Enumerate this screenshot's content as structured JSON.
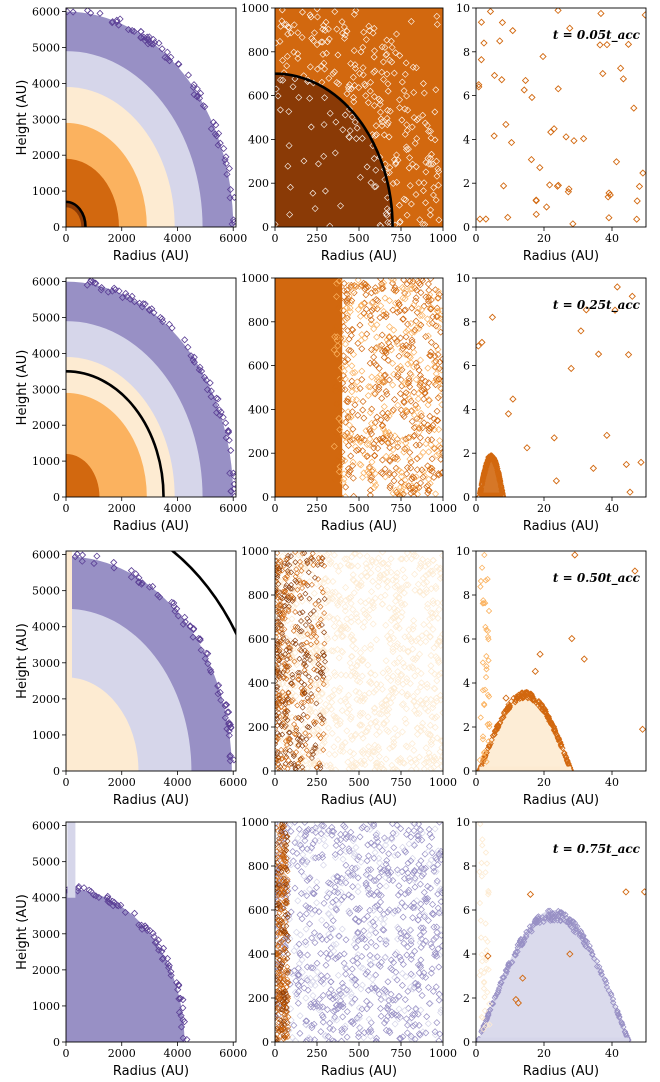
{
  "colors": {
    "purple_dark": "#5b3f95",
    "purple": "#9890c5",
    "lavender": "#d6d6ea",
    "peach": "#fdebd2",
    "orange_light": "#fbb25f",
    "orange": "#d2680f",
    "brown": "#8a3a06",
    "black": "#000000"
  },
  "chart_data": [
    {
      "id": "r1c1",
      "type": "scatter",
      "xlabel": "Radius (AU)",
      "ylabel": "Height (AU)",
      "xlim": [
        0,
        6100
      ],
      "ylim": [
        0,
        6100
      ],
      "xticks": [
        0,
        2000,
        4000,
        6000
      ],
      "yticks": [
        0,
        1000,
        2000,
        3000,
        4000,
        5000,
        6000
      ],
      "shells": [
        {
          "r": 6000,
          "color": "purple"
        },
        {
          "r": 4900,
          "color": "lavender"
        },
        {
          "r": 3900,
          "color": "peach"
        },
        {
          "r": 2900,
          "color": "orange_light"
        },
        {
          "r": 1900,
          "color": "orange"
        },
        {
          "r": 700,
          "color": "brown"
        },
        {
          "r": 550,
          "color": "orange"
        }
      ],
      "outer_rim": 6000,
      "black_arc_r": 700,
      "annotation": ""
    },
    {
      "id": "r1c2",
      "type": "scatter",
      "xlabel": "Radius (AU)",
      "ylabel": "",
      "xlim": [
        0,
        1000
      ],
      "ylim": [
        0,
        1000
      ],
      "xticks": [
        0,
        250,
        500,
        750,
        1000
      ],
      "yticks": [
        0,
        200,
        400,
        600,
        800,
        1000
      ],
      "region": "inner-brown-outer-orange",
      "split_r": 700,
      "black_arc_r": 700,
      "annotation": ""
    },
    {
      "id": "r1c3",
      "type": "scatter",
      "xlabel": "Radius (AU)",
      "ylabel": "",
      "xlim": [
        0,
        50
      ],
      "ylim": [
        0,
        10
      ],
      "xticks": [
        0,
        20,
        40
      ],
      "yticks": [
        0,
        2,
        4,
        6,
        8,
        10
      ],
      "marker_color": "orange",
      "n_points": 60,
      "annotation": "t = 0.05t_acc"
    },
    {
      "id": "r2c1",
      "type": "scatter",
      "xlabel": "Radius (AU)",
      "ylabel": "Height (AU)",
      "xlim": [
        0,
        6100
      ],
      "ylim": [
        0,
        6100
      ],
      "xticks": [
        0,
        2000,
        4000,
        6000
      ],
      "yticks": [
        0,
        1000,
        2000,
        3000,
        4000,
        5000,
        6000
      ],
      "shells": [
        {
          "r": 6000,
          "color": "purple"
        },
        {
          "r": 4900,
          "color": "lavender"
        },
        {
          "r": 3900,
          "color": "peach"
        },
        {
          "r": 2900,
          "color": "orange_light"
        },
        {
          "r": 1200,
          "color": "orange"
        }
      ],
      "outer_rim": 6000,
      "black_arc_r": 3500,
      "annotation": ""
    },
    {
      "id": "r2c2",
      "type": "scatter",
      "xlabel": "Radius (AU)",
      "ylabel": "",
      "xlim": [
        0,
        1000
      ],
      "ylim": [
        0,
        1000
      ],
      "xticks": [
        0,
        250,
        500,
        750,
        1000
      ],
      "yticks": [
        0,
        200,
        400,
        600,
        800,
        1000
      ],
      "region": "orange-left-white-right",
      "split_r": 400,
      "annotation": ""
    },
    {
      "id": "r2c3",
      "type": "scatter",
      "xlabel": "Radius (AU)",
      "ylabel": "",
      "xlim": [
        0,
        50
      ],
      "ylim": [
        0,
        10
      ],
      "xticks": [
        0,
        20,
        40
      ],
      "yticks": [
        0,
        2,
        4,
        6,
        8,
        10
      ],
      "marker_color": "orange",
      "n_points": 22,
      "disk": {
        "peak": 1.9,
        "r_in": 1,
        "r_out": 8
      },
      "annotation": "t = 0.25t_acc"
    },
    {
      "id": "r3c1",
      "type": "scatter",
      "xlabel": "Radius (AU)",
      "ylabel": "Height (AU)",
      "xlim": [
        0,
        6100
      ],
      "ylim": [
        0,
        6100
      ],
      "xticks": [
        0,
        2000,
        4000,
        6000
      ],
      "yticks": [
        0,
        1000,
        2000,
        3000,
        4000,
        5000,
        6000
      ],
      "shells": [
        {
          "r": 5950,
          "color": "purple"
        },
        {
          "r": 4500,
          "color": "lavender"
        },
        {
          "r": 2600,
          "color": "peach"
        }
      ],
      "outer_rim": 5950,
      "black_arc_r": 7200,
      "annotation": ""
    },
    {
      "id": "r3c2",
      "type": "scatter",
      "xlabel": "Radius (AU)",
      "ylabel": "",
      "xlim": [
        0,
        1000
      ],
      "ylim": [
        0,
        1000
      ],
      "xticks": [
        0,
        250,
        500,
        750,
        1000
      ],
      "yticks": [
        0,
        200,
        400,
        600,
        800,
        1000
      ],
      "region": "peach-with-brown-left",
      "split_r": 300,
      "annotation": ""
    },
    {
      "id": "r3c3",
      "type": "scatter",
      "xlabel": "Radius (AU)",
      "ylabel": "",
      "xlim": [
        0,
        50
      ],
      "ylim": [
        0,
        10
      ],
      "xticks": [
        0,
        20,
        40
      ],
      "yticks": [
        0,
        2,
        4,
        6,
        8,
        10
      ],
      "marker_color": "orange",
      "disk": {
        "peak": 3.6,
        "r_in": 1,
        "r_out": 28
      },
      "annotation": "t = 0.50t_acc"
    },
    {
      "id": "r4c1",
      "type": "scatter",
      "xlabel": "Radius (AU)",
      "ylabel": "Height (AU)",
      "xlim": [
        0,
        6100
      ],
      "ylim": [
        0,
        6100
      ],
      "xticks": [
        0,
        2000,
        4000,
        6000
      ],
      "yticks": [
        0,
        1000,
        2000,
        3000,
        4000,
        5000,
        6000
      ],
      "shells": [
        {
          "r": 4250,
          "color": "purple"
        }
      ],
      "outer_rim": 4250,
      "annotation": ""
    },
    {
      "id": "r4c2",
      "type": "scatter",
      "xlabel": "Radius (AU)",
      "ylabel": "",
      "xlim": [
        0,
        1000
      ],
      "ylim": [
        0,
        1000
      ],
      "xticks": [
        0,
        250,
        500,
        750,
        1000
      ],
      "yticks": [
        0,
        200,
        400,
        600,
        800,
        1000
      ],
      "region": "purple-diamonds-brown-left",
      "split_r": 80,
      "annotation": ""
    },
    {
      "id": "r4c3",
      "type": "scatter",
      "xlabel": "Radius (AU)",
      "ylabel": "",
      "xlim": [
        0,
        50
      ],
      "ylim": [
        0,
        10
      ],
      "xticks": [
        0,
        20,
        40
      ],
      "yticks": [
        0,
        2,
        4,
        6,
        8,
        10
      ],
      "marker_color": "purple",
      "disk": {
        "peak": 6.0,
        "r_in": 0.5,
        "r_out": 45
      },
      "annotation": "t = 0.75t_acc"
    }
  ]
}
